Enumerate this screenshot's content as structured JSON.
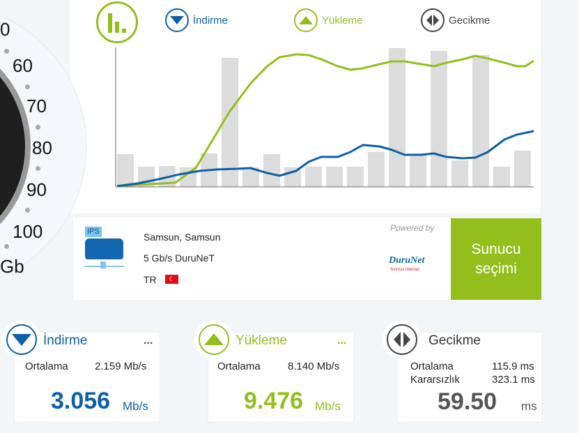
{
  "gauge": {
    "ticks": [
      "0",
      "60",
      "70",
      "80",
      "90",
      "100"
    ],
    "unit": "Gb"
  },
  "legend": {
    "download": "İndirme",
    "upload": "Yükleme",
    "latency": "Gecikme"
  },
  "colors": {
    "download": "#0d5fa8",
    "upload": "#93bf1d",
    "latency": "#444444",
    "bars": "#dcdcdc"
  },
  "chart_data": {
    "type": "bar+line",
    "bars": [
      23.5,
      14.5,
      15,
      14,
      24,
      92.5,
      14,
      23.5,
      14,
      14.5,
      14.5,
      14.5,
      25,
      99.5,
      23.5,
      97.5,
      19,
      94.5,
      14.5,
      26
    ],
    "series": [
      {
        "key": "upload",
        "points": [
          [
            0,
            0.5
          ],
          [
            5,
            1.5
          ],
          [
            14,
            3
          ],
          [
            19,
            14
          ],
          [
            22,
            29
          ],
          [
            27,
            54
          ],
          [
            32,
            74
          ],
          [
            36,
            86.5
          ],
          [
            39,
            93
          ],
          [
            43,
            95
          ],
          [
            46,
            94.5
          ],
          [
            49,
            91.5
          ],
          [
            53,
            86.5
          ],
          [
            56,
            84
          ],
          [
            59,
            85
          ],
          [
            63,
            88
          ],
          [
            66,
            90
          ],
          [
            69,
            90
          ],
          [
            73,
            88
          ],
          [
            76,
            86.5
          ],
          [
            79,
            89
          ],
          [
            83,
            91.5
          ],
          [
            86,
            94
          ],
          [
            89,
            92
          ],
          [
            93,
            89
          ],
          [
            96,
            86.5
          ],
          [
            98,
            86.5
          ],
          [
            100,
            90.5
          ]
        ]
      },
      {
        "key": "download",
        "points": [
          [
            0,
            0.5
          ],
          [
            5,
            2.5
          ],
          [
            10,
            5.5
          ],
          [
            15,
            9
          ],
          [
            20,
            11.5
          ],
          [
            24,
            12.5
          ],
          [
            29,
            13
          ],
          [
            32,
            13.5
          ],
          [
            36,
            10
          ],
          [
            39,
            8
          ],
          [
            43,
            11.5
          ],
          [
            46,
            18
          ],
          [
            49,
            21.5
          ],
          [
            53,
            21.5
          ],
          [
            56,
            25
          ],
          [
            59,
            30
          ],
          [
            63,
            29
          ],
          [
            66,
            26.5
          ],
          [
            69,
            23
          ],
          [
            73,
            23
          ],
          [
            76,
            24
          ],
          [
            79,
            21.5
          ],
          [
            83,
            20.5
          ],
          [
            86,
            21
          ],
          [
            89,
            25
          ],
          [
            93,
            34
          ],
          [
            96,
            37.5
          ],
          [
            100,
            40
          ]
        ]
      }
    ]
  },
  "server": {
    "badge": "IPS",
    "city": "Samsun, Samsun",
    "provider": "5 Gb/s DuruNeT",
    "country": "TR",
    "powered_by": "Powered by",
    "logo_text": "DuruNet",
    "logo_sub": "Sınırsız internet",
    "select_label_1": "Sunucu",
    "select_label_2": "seçimi"
  },
  "cards": {
    "download": {
      "title": "İndirme",
      "more": "...",
      "avg_label": "Ortalama",
      "avg": "2.159 Mb/s",
      "value": "3.056",
      "unit": "Mb/s"
    },
    "upload": {
      "title": "Yükleme",
      "more": "...",
      "avg_label": "Ortalama",
      "avg": "8.140 Mb/s",
      "value": "9.476",
      "unit": "Mb/s"
    },
    "latency": {
      "title": "Gecikme",
      "avg_label": "Ortalama",
      "avg": "115.9 ms",
      "jitter_label": "Kararsızlık",
      "jitter": "323.1 ms",
      "value": "59.50",
      "unit": "ms"
    }
  }
}
